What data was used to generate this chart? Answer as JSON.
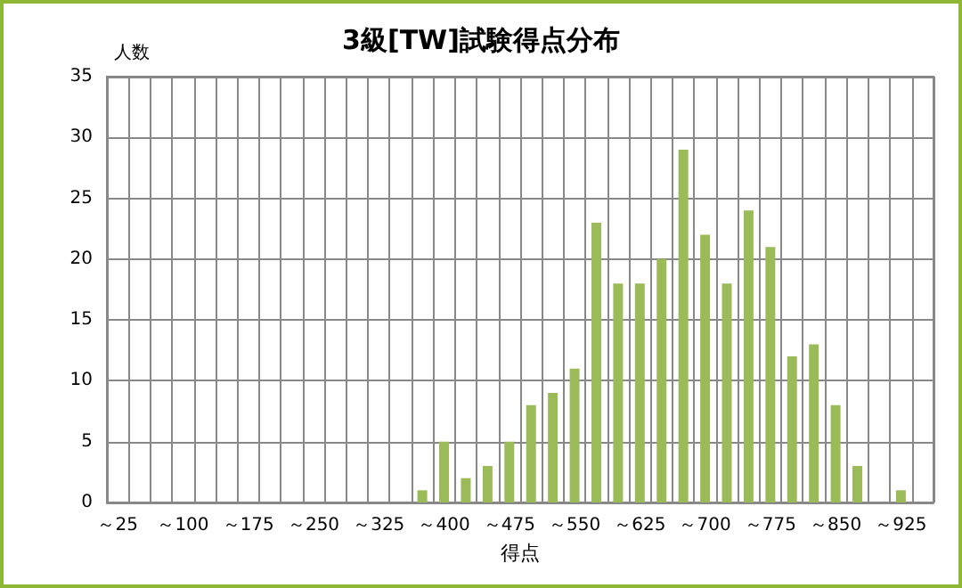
{
  "chart_data": {
    "type": "bar",
    "title": "3級[TW]試験得点分布",
    "xlabel": "得点",
    "ylabel": "人数",
    "categories": [
      "～25",
      null,
      null,
      "～100",
      null,
      null,
      "～175",
      null,
      null,
      "～250",
      null,
      null,
      "～325",
      null,
      null,
      "～400",
      null,
      null,
      "～475",
      null,
      null,
      "～550",
      null,
      null,
      "～625",
      null,
      null,
      "～700",
      null,
      null,
      "～775",
      null,
      null,
      "～850",
      null,
      null,
      "～925",
      null
    ],
    "values": [
      0,
      0,
      0,
      0,
      0,
      0,
      0,
      0,
      0,
      0,
      0,
      0,
      0,
      0,
      1,
      5,
      2,
      3,
      5,
      8,
      9,
      11,
      23,
      18,
      18,
      20,
      29,
      22,
      18,
      24,
      21,
      12,
      13,
      8,
      3,
      0,
      1,
      0
    ],
    "color": "#9bbb59",
    "ylim": [
      0,
      35
    ],
    "yticks": [
      0,
      5,
      10,
      15,
      20,
      25,
      30,
      35
    ],
    "grid": true
  }
}
